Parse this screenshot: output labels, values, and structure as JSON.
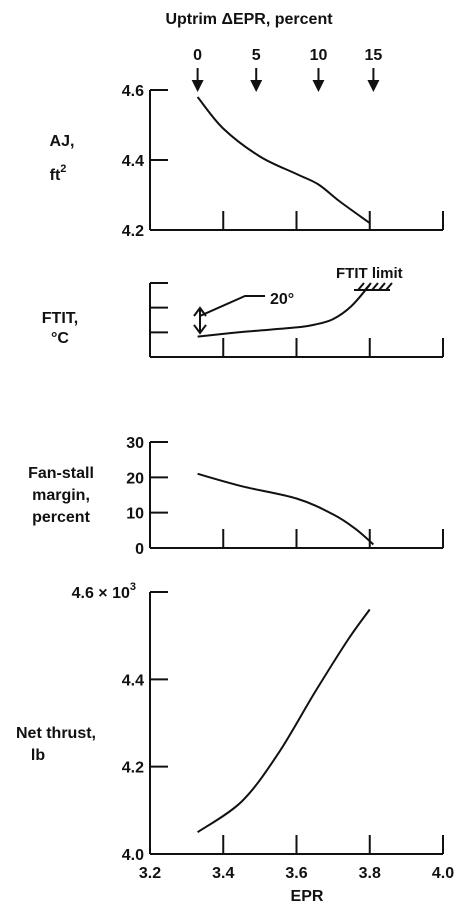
{
  "top_axis": {
    "label": "Uptrim ΔEPR, percent",
    "ticks": [
      {
        "label": "0",
        "epr": 3.33
      },
      {
        "label": "5",
        "epr": 3.49
      },
      {
        "label": "10",
        "epr": 3.66
      },
      {
        "label": "15",
        "epr": 3.81
      }
    ]
  },
  "x_axis": {
    "label": "EPR",
    "ticks": [
      "3.2",
      "3.4",
      "3.6",
      "3.8",
      "4.0"
    ],
    "range": [
      3.2,
      4.0
    ]
  },
  "chart_data": [
    {
      "type": "line",
      "ylabel": "AJ,",
      "ylabel_unit": "ft",
      "ylabel_sup": "2",
      "ylim": [
        4.2,
        4.6
      ],
      "yticks": [
        "4.2",
        "4.4",
        "4.6"
      ],
      "x": [
        3.33,
        3.4,
        3.5,
        3.6,
        3.66,
        3.72,
        3.8
      ],
      "y": [
        4.58,
        4.49,
        4.41,
        4.36,
        4.33,
        4.28,
        4.22
      ]
    },
    {
      "type": "line",
      "ylabel": "FTIT,",
      "ylabel_unit": "°C",
      "annotations": {
        "limit": "FTIT limit",
        "interval": "20°"
      },
      "ylim": [
        0,
        4
      ],
      "x": [
        3.33,
        3.45,
        3.6,
        3.65,
        3.7,
        3.75,
        3.8
      ],
      "y": [
        1.1,
        1.35,
        1.6,
        1.75,
        2.05,
        2.75,
        3.9
      ]
    },
    {
      "type": "line",
      "ylabel": "Fan-stall",
      "ylabel_line2": "margin,",
      "ylabel_line3": "percent",
      "ylim": [
        0,
        30
      ],
      "yticks": [
        "0",
        "10",
        "20",
        "30"
      ],
      "x": [
        3.33,
        3.45,
        3.6,
        3.7,
        3.76,
        3.81
      ],
      "y": [
        21,
        17.5,
        14,
        9.5,
        5.5,
        1
      ]
    },
    {
      "type": "line",
      "ylabel": "Net thrust,",
      "ylabel_line2": "lb",
      "ylim": [
        4.0,
        4.6
      ],
      "yticks": [
        "4.0",
        "4.2",
        "4.4",
        "4.6 × 10"
      ],
      "ytick_exponent": "3",
      "x": [
        3.33,
        3.45,
        3.55,
        3.65,
        3.74,
        3.8
      ],
      "y": [
        4.05,
        4.12,
        4.23,
        4.37,
        4.49,
        4.56
      ]
    }
  ]
}
